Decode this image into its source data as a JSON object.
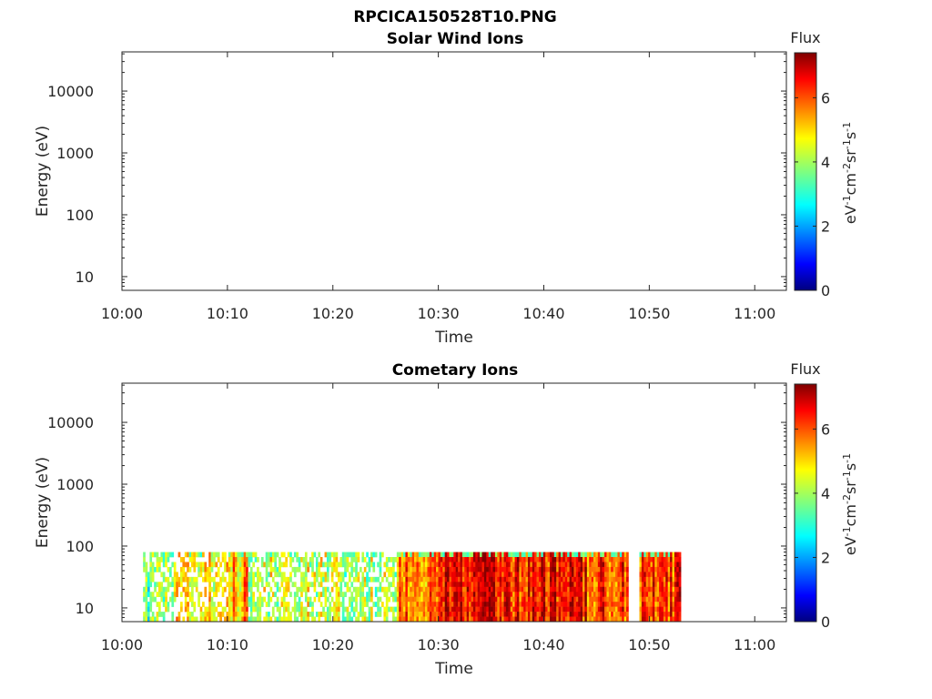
{
  "figure": {
    "main_title": "RPCICA150528T10.PNG"
  },
  "colorscale": [
    "#00007f",
    "#0000ff",
    "#007fff",
    "#00ffff",
    "#7fff7f",
    "#ffff00",
    "#ff7f00",
    "#ff0000",
    "#7f0000"
  ],
  "chart_data": [
    {
      "type": "heatmap",
      "title": "Solar Wind Ions",
      "xlabel": "Time",
      "ylabel": "Energy (eV)",
      "x_tick_labels": [
        "10:00",
        "10:10",
        "10:20",
        "10:30",
        "10:40",
        "10:50",
        "11:00"
      ],
      "x_range_minutes": [
        0,
        63
      ],
      "y_scale": "log",
      "y_tick_labels": [
        "10",
        "100",
        "1000",
        "10000"
      ],
      "y_range_eV": [
        6,
        43000
      ],
      "colorbar": {
        "label": "Flux",
        "unit_base": [
          "eV",
          "cm",
          "sr",
          "s"
        ],
        "unit_exp": [
          "-1",
          "-2",
          "-1",
          "-1"
        ],
        "ticks": [
          "0",
          "2",
          "4",
          "6"
        ],
        "range": [
          0,
          7.4
        ]
      },
      "data_present": false
    },
    {
      "type": "heatmap",
      "title": "Cometary Ions",
      "xlabel": "Time",
      "ylabel": "Energy (eV)",
      "x_tick_labels": [
        "10:00",
        "10:10",
        "10:20",
        "10:30",
        "10:40",
        "10:50",
        "11:00"
      ],
      "x_range_minutes": [
        0,
        63
      ],
      "y_scale": "log",
      "y_tick_labels": [
        "10",
        "100",
        "1000",
        "10000"
      ],
      "y_range_eV": [
        6,
        43000
      ],
      "colorbar": {
        "label": "Flux",
        "unit_base": [
          "eV",
          "cm",
          "sr",
          "s"
        ],
        "unit_exp": [
          "-1",
          "-2",
          "-1",
          "-1"
        ],
        "ticks": [
          "0",
          "2",
          "4",
          "6"
        ],
        "range": [
          0,
          7.4
        ]
      },
      "data_present": true,
      "data_time_range": [
        "10:02",
        "10:53"
      ],
      "data_energy_range_eV": [
        6,
        80
      ],
      "flux_profile": [
        {
          "start": "10:02",
          "end": "10:05",
          "flux_mean": 3.6
        },
        {
          "start": "10:05",
          "end": "10:10",
          "flux_mean": 4.8
        },
        {
          "start": "10:10",
          "end": "10:12",
          "flux_mean": 5.2
        },
        {
          "start": "10:12",
          "end": "10:20",
          "flux_mean": 4.2
        },
        {
          "start": "10:20",
          "end": "10:26",
          "flux_mean": 4.1
        },
        {
          "start": "10:26",
          "end": "10:30",
          "flux_mean": 5.6
        },
        {
          "start": "10:30",
          "end": "10:36",
          "flux_mean": 6.6
        },
        {
          "start": "10:36",
          "end": "10:44",
          "flux_mean": 6.4
        },
        {
          "start": "10:44",
          "end": "10:48",
          "flux_mean": 6.0
        },
        {
          "start": "10:48",
          "end": "10:49",
          "flux_mean": 0
        },
        {
          "start": "10:49",
          "end": "10:53",
          "flux_mean": 6.1
        }
      ]
    }
  ]
}
